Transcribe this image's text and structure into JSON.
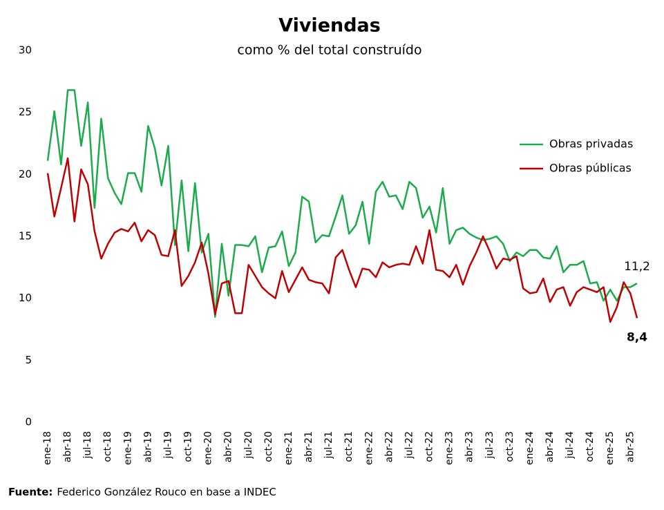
{
  "chart_data": {
    "type": "line",
    "title": "Viviendas",
    "subtitle": "como % del total construído",
    "categories": [
      "ene-18",
      null,
      null,
      "abr-18",
      null,
      null,
      "jul-18",
      null,
      null,
      "oct-18",
      null,
      null,
      "ene-19",
      null,
      null,
      "abr-19",
      null,
      null,
      "jul-19",
      null,
      null,
      "oct-19",
      null,
      null,
      "ene-20",
      null,
      null,
      "abr-20",
      null,
      null,
      "jul-20",
      null,
      null,
      "oct-20",
      null,
      null,
      "ene-21",
      null,
      null,
      "abr-21",
      null,
      null,
      "jul-21",
      null,
      null,
      "oct-21",
      null,
      null,
      "ene-22",
      null,
      null,
      "abr-22",
      null,
      null,
      "jul-22",
      null,
      null,
      "oct-22",
      null,
      null,
      "ene-23",
      null,
      null,
      "abr-23",
      null,
      null,
      "jul-23",
      null,
      null,
      "oct-23",
      null,
      null,
      "ene-24",
      null,
      null,
      "abr-24",
      null,
      null,
      "jul-24",
      null,
      null,
      "oct-24",
      null,
      null,
      "ene-25",
      null,
      null,
      "abr-25",
      null
    ],
    "series": [
      {
        "name": "Obras privadas",
        "color": "#1aab4b",
        "values": [
          21.1,
          25.1,
          20.8,
          26.8,
          26.8,
          22.3,
          25.8,
          17.3,
          24.5,
          19.7,
          18.5,
          17.6,
          20.1,
          20.1,
          18.6,
          23.9,
          22.1,
          19.1,
          22.3,
          14.3,
          19.5,
          13.8,
          19.3,
          13.7,
          15.2,
          8.5,
          14.4,
          10.2,
          14.3,
          14.3,
          14.2,
          15.0,
          12.1,
          14.1,
          14.2,
          15.4,
          12.6,
          13.7,
          18.2,
          17.8,
          14.5,
          15.1,
          15.0,
          16.6,
          18.3,
          15.2,
          15.9,
          17.8,
          14.4,
          18.6,
          19.4,
          18.2,
          18.3,
          17.2,
          19.4,
          18.9,
          16.5,
          17.4,
          15.3,
          18.9,
          14.4,
          15.5,
          15.7,
          15.2,
          14.9,
          14.7,
          14.8,
          15.0,
          14.4,
          13.0,
          13.7,
          13.4,
          13.9,
          13.9,
          13.3,
          13.2,
          14.2,
          12.1,
          12.7,
          12.7,
          13.0,
          11.2,
          11.3,
          9.8,
          10.7,
          9.8,
          10.9,
          10.9,
          11.2
        ],
        "value_labels": [
          null,
          null,
          null,
          null,
          null,
          null,
          null,
          null,
          null,
          null,
          null,
          null,
          null,
          null,
          null,
          null,
          null,
          null,
          null,
          null,
          null,
          null,
          null,
          null,
          null,
          null,
          null,
          null,
          null,
          null,
          null,
          null,
          null,
          null,
          null,
          null,
          null,
          null,
          null,
          null,
          null,
          null,
          null,
          null,
          null,
          null,
          null,
          null,
          null,
          null,
          null,
          null,
          null,
          null,
          null,
          null,
          null,
          null,
          null,
          null,
          null,
          null,
          null,
          null,
          null,
          null,
          null,
          null,
          null,
          null,
          null,
          null,
          null,
          null,
          null,
          null,
          null,
          null,
          null,
          null,
          null,
          null,
          null,
          null,
          null,
          null,
          null,
          null,
          "11,2"
        ]
      },
      {
        "name": "Obras públicas",
        "color": "#c00000",
        "values": [
          20.1,
          16.6,
          18.9,
          21.3,
          16.2,
          20.4,
          19.2,
          15.4,
          13.2,
          14.4,
          15.3,
          15.6,
          15.4,
          16.1,
          14.6,
          15.5,
          15.1,
          13.5,
          13.4,
          15.5,
          11.0,
          11.8,
          12.9,
          14.5,
          12.0,
          8.7,
          11.2,
          11.4,
          8.8,
          8.8,
          12.7,
          11.8,
          10.9,
          10.4,
          10.0,
          12.2,
          10.5,
          11.5,
          12.5,
          11.5,
          11.3,
          11.2,
          10.4,
          13.3,
          13.9,
          12.3,
          10.9,
          12.4,
          12.3,
          11.7,
          12.9,
          12.5,
          12.7,
          12.8,
          12.7,
          14.2,
          12.8,
          15.5,
          12.3,
          12.2,
          11.7,
          12.7,
          11.1,
          12.6,
          13.7,
          15.0,
          13.8,
          12.4,
          13.2,
          13.1,
          13.4,
          10.8,
          10.4,
          10.5,
          11.6,
          9.7,
          10.7,
          10.9,
          9.4,
          10.5,
          10.9,
          10.7,
          10.5,
          10.9,
          8.1,
          9.3,
          11.3,
          10.4,
          8.4
        ],
        "value_labels": [
          null,
          null,
          null,
          null,
          null,
          null,
          null,
          null,
          null,
          null,
          null,
          null,
          null,
          null,
          null,
          null,
          null,
          null,
          null,
          null,
          null,
          null,
          null,
          null,
          null,
          null,
          null,
          null,
          null,
          null,
          null,
          null,
          null,
          null,
          null,
          null,
          null,
          null,
          null,
          null,
          null,
          null,
          null,
          null,
          null,
          null,
          null,
          null,
          null,
          null,
          null,
          null,
          null,
          null,
          null,
          null,
          null,
          null,
          null,
          null,
          null,
          null,
          null,
          null,
          null,
          null,
          null,
          null,
          null,
          null,
          null,
          null,
          null,
          null,
          null,
          null,
          null,
          null,
          null,
          null,
          null,
          null,
          null,
          null,
          null,
          null,
          null,
          null,
          "8,4"
        ]
      }
    ],
    "ylim": [
      0,
      30
    ],
    "yticks": [
      0,
      5,
      10,
      15,
      20,
      25,
      30
    ],
    "grid": false,
    "legend": "upper right",
    "source": {
      "label": "Fuente:",
      "text": "Federico González Rouco en base a INDEC"
    }
  }
}
